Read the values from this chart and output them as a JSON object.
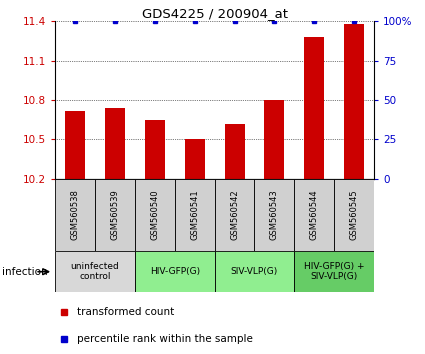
{
  "title": "GDS4225 / 200904_at",
  "samples": [
    "GSM560538",
    "GSM560539",
    "GSM560540",
    "GSM560541",
    "GSM560542",
    "GSM560543",
    "GSM560544",
    "GSM560545"
  ],
  "bar_values": [
    10.72,
    10.74,
    10.65,
    10.5,
    10.62,
    10.8,
    11.28,
    11.38
  ],
  "percentile_values": [
    100,
    100,
    100,
    100,
    100,
    100,
    100,
    100
  ],
  "ylim": [
    10.2,
    11.4
  ],
  "yticks": [
    10.2,
    10.5,
    10.8,
    11.1,
    11.4
  ],
  "right_yticks": [
    0,
    25,
    50,
    75,
    100
  ],
  "right_ytick_labels": [
    "0",
    "25",
    "50",
    "75",
    "100%"
  ],
  "bar_color": "#cc0000",
  "dot_color": "#0000cc",
  "groups": [
    {
      "label": "uninfected\ncontrol",
      "start": 0,
      "end": 2,
      "color": "#d8d8d8"
    },
    {
      "label": "HIV-GFP(G)",
      "start": 2,
      "end": 4,
      "color": "#90ee90"
    },
    {
      "label": "SIV-VLP(G)",
      "start": 4,
      "end": 6,
      "color": "#90ee90"
    },
    {
      "label": "HIV-GFP(G) +\nSIV-VLP(G)",
      "start": 6,
      "end": 8,
      "color": "#66cc66"
    }
  ],
  "legend_items": [
    {
      "color": "#cc0000",
      "label": "transformed count"
    },
    {
      "color": "#0000cc",
      "label": "percentile rank within the sample"
    }
  ],
  "infection_label": "infection",
  "sample_box_color": "#d0d0d0",
  "bar_width": 0.5
}
